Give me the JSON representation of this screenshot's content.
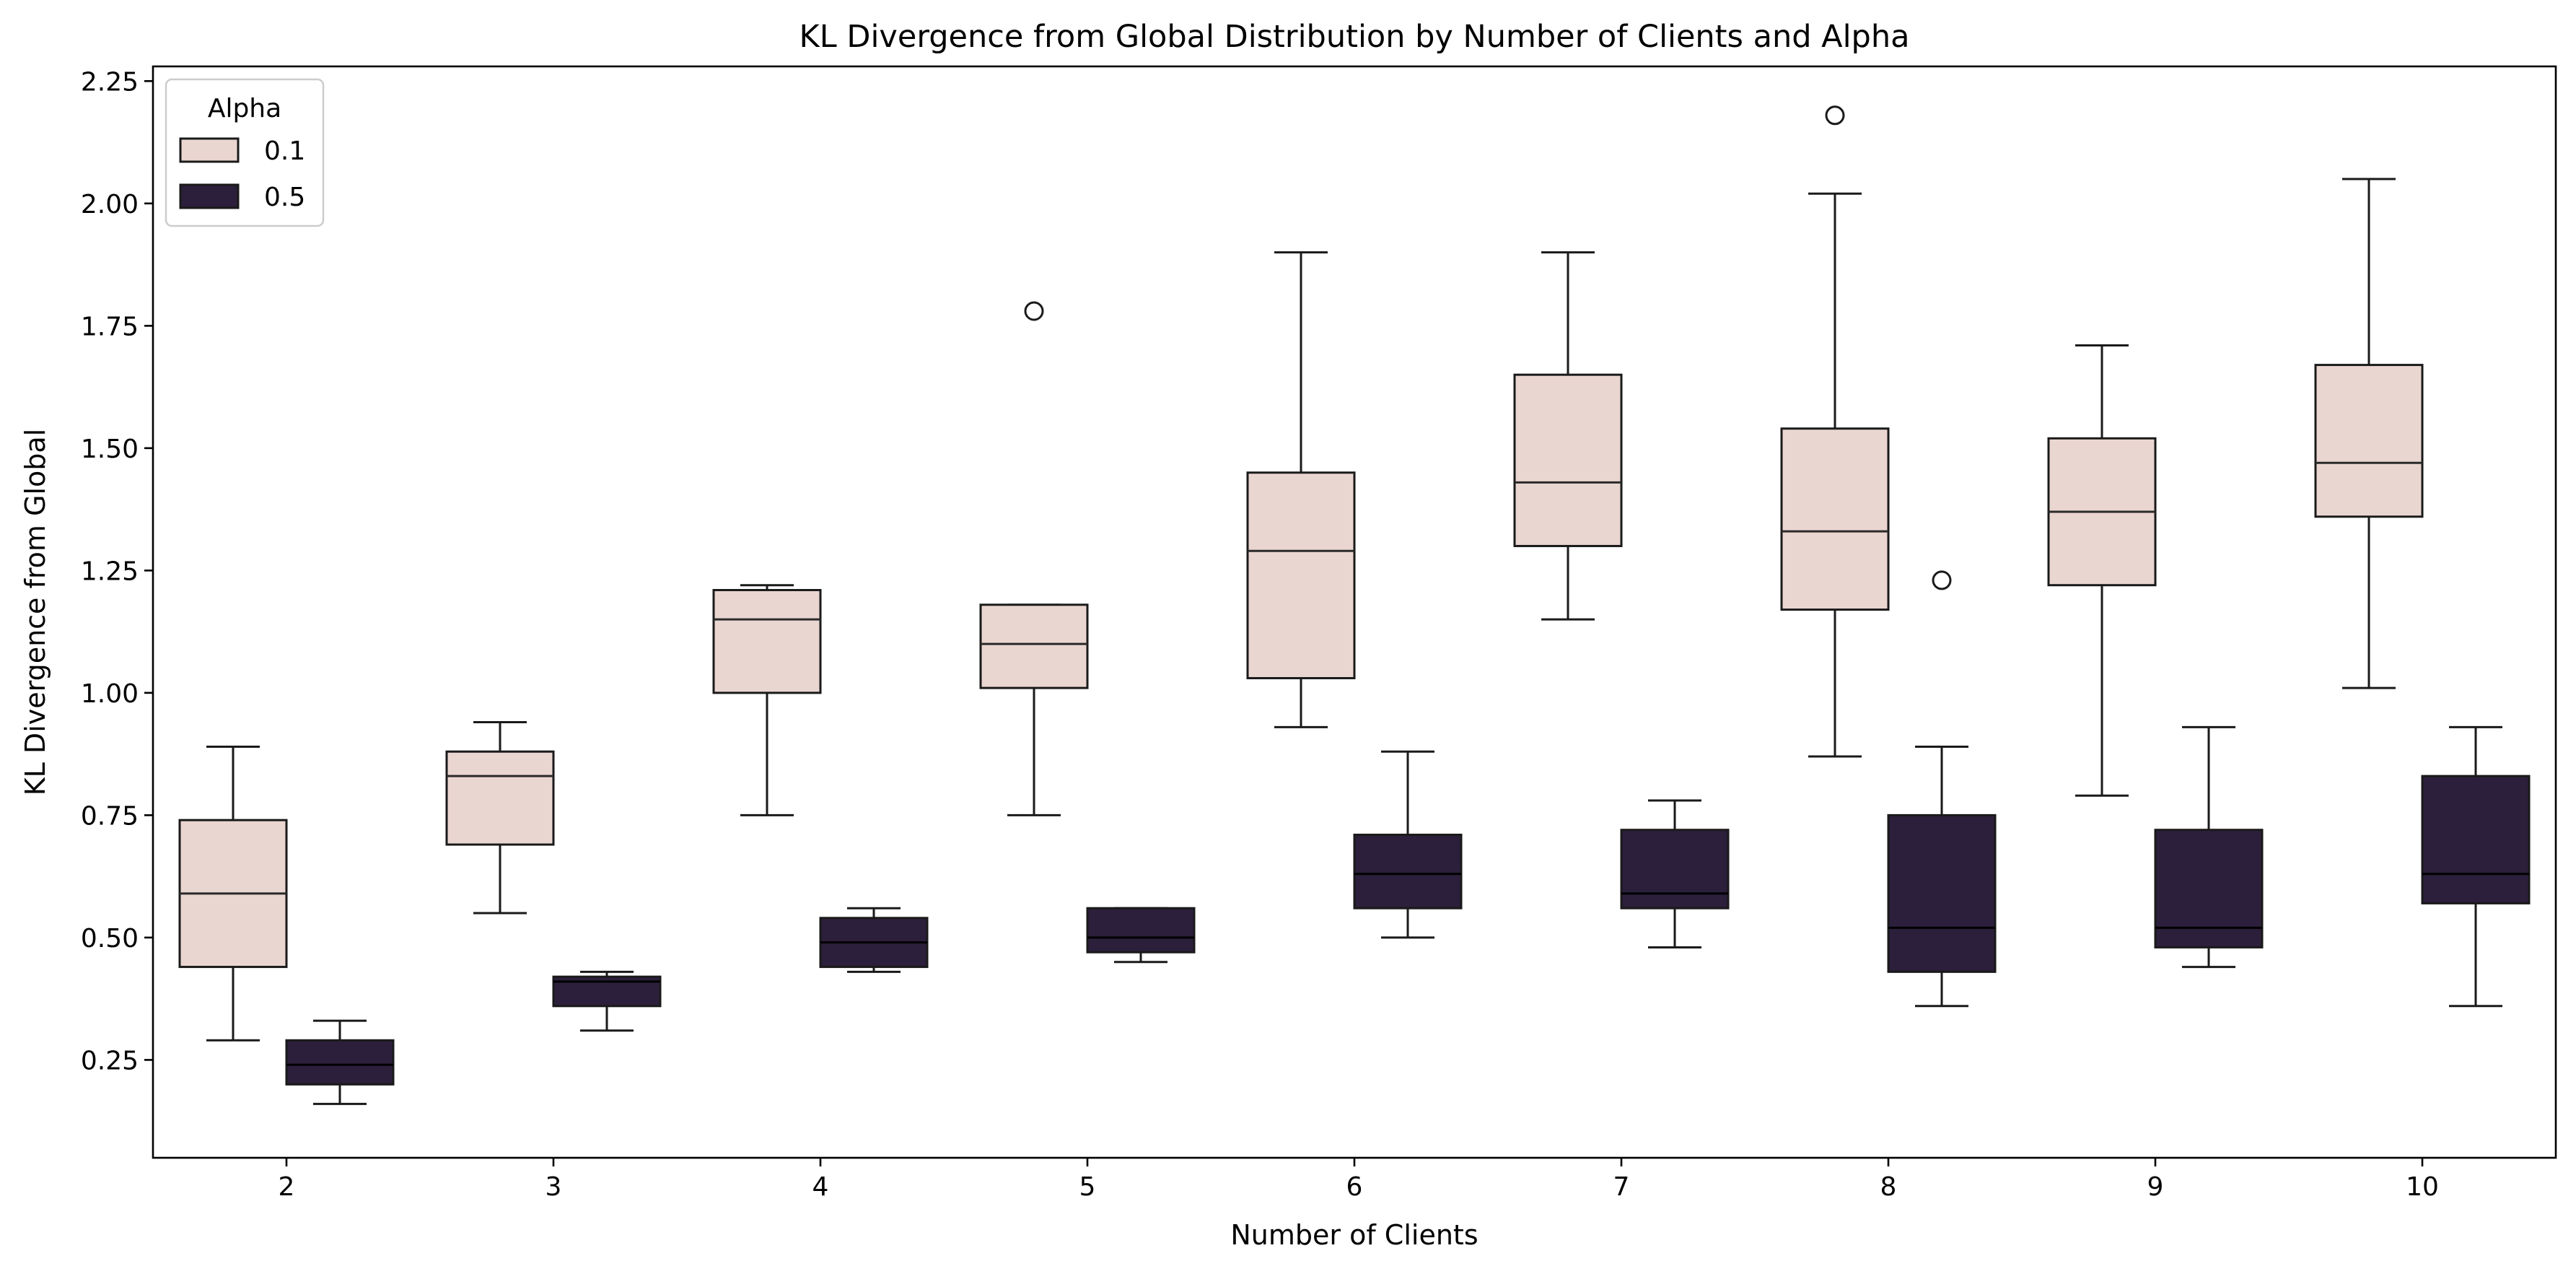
{
  "chart_data": {
    "type": "box",
    "title": "KL Divergence from Global Distribution by Number of Clients and Alpha",
    "xlabel": "Number of Clients",
    "ylabel": "KL Divergence from Global",
    "categories": [
      "2",
      "3",
      "4",
      "5",
      "6",
      "7",
      "8",
      "9",
      "10"
    ],
    "ylim": [
      0.05,
      2.28
    ],
    "yticks": [
      0.25,
      0.5,
      0.75,
      1.0,
      1.25,
      1.5,
      1.75,
      2.0,
      2.25
    ],
    "ytick_labels": [
      "0.25",
      "0.50",
      "0.75",
      "1.00",
      "1.25",
      "1.50",
      "1.75",
      "2.00",
      "2.25"
    ],
    "grid": false,
    "legend": {
      "title": "Alpha",
      "placement": "top-left"
    },
    "series": [
      {
        "name": "0.1",
        "color": "#ead6d0",
        "boxes": [
          {
            "whisker_low": 0.29,
            "q1": 0.44,
            "median": 0.59,
            "q3": 0.74,
            "whisker_high": 0.89,
            "outliers": []
          },
          {
            "whisker_low": 0.55,
            "q1": 0.69,
            "median": 0.83,
            "q3": 0.88,
            "whisker_high": 0.94,
            "outliers": []
          },
          {
            "whisker_low": 0.75,
            "q1": 1.0,
            "median": 1.15,
            "q3": 1.21,
            "whisker_high": 1.22,
            "outliers": []
          },
          {
            "whisker_low": 0.75,
            "q1": 1.01,
            "median": 1.1,
            "q3": 1.18,
            "whisker_high": 1.18,
            "outliers": [
              1.78
            ]
          },
          {
            "whisker_low": 0.93,
            "q1": 1.03,
            "median": 1.29,
            "q3": 1.45,
            "whisker_high": 1.9,
            "outliers": []
          },
          {
            "whisker_low": 1.15,
            "q1": 1.3,
            "median": 1.43,
            "q3": 1.65,
            "whisker_high": 1.9,
            "outliers": []
          },
          {
            "whisker_low": 0.87,
            "q1": 1.17,
            "median": 1.33,
            "q3": 1.54,
            "whisker_high": 2.02,
            "outliers": [
              2.18
            ]
          },
          {
            "whisker_low": 0.79,
            "q1": 1.22,
            "median": 1.37,
            "q3": 1.52,
            "whisker_high": 1.71,
            "outliers": []
          },
          {
            "whisker_low": 1.01,
            "q1": 1.36,
            "median": 1.47,
            "q3": 1.67,
            "whisker_high": 2.05,
            "outliers": []
          }
        ]
      },
      {
        "name": "0.5",
        "color": "#2c1f3b",
        "boxes": [
          {
            "whisker_low": 0.16,
            "q1": 0.2,
            "median": 0.24,
            "q3": 0.29,
            "whisker_high": 0.33,
            "outliers": []
          },
          {
            "whisker_low": 0.31,
            "q1": 0.36,
            "median": 0.41,
            "q3": 0.42,
            "whisker_high": 0.43,
            "outliers": []
          },
          {
            "whisker_low": 0.43,
            "q1": 0.44,
            "median": 0.49,
            "q3": 0.54,
            "whisker_high": 0.56,
            "outliers": []
          },
          {
            "whisker_low": 0.45,
            "q1": 0.47,
            "median": 0.5,
            "q3": 0.56,
            "whisker_high": 0.56,
            "outliers": []
          },
          {
            "whisker_low": 0.5,
            "q1": 0.56,
            "median": 0.63,
            "q3": 0.71,
            "whisker_high": 0.88,
            "outliers": []
          },
          {
            "whisker_low": 0.48,
            "q1": 0.56,
            "median": 0.59,
            "q3": 0.72,
            "whisker_high": 0.78,
            "outliers": []
          },
          {
            "whisker_low": 0.36,
            "q1": 0.43,
            "median": 0.52,
            "q3": 0.75,
            "whisker_high": 0.89,
            "outliers": [
              1.23
            ]
          },
          {
            "whisker_low": 0.44,
            "q1": 0.48,
            "median": 0.52,
            "q3": 0.72,
            "whisker_high": 0.93,
            "outliers": []
          },
          {
            "whisker_low": 0.36,
            "q1": 0.57,
            "median": 0.63,
            "q3": 0.83,
            "whisker_high": 0.93,
            "outliers": []
          }
        ]
      }
    ]
  }
}
